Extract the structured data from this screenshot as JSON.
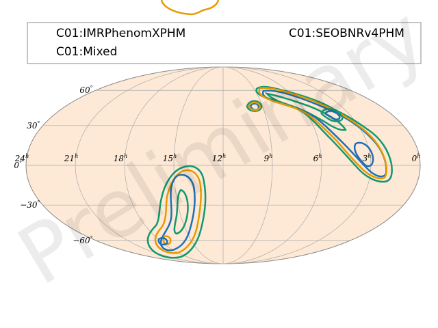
{
  "legend": {
    "items": [
      {
        "label": "C01:IMRPhenomXPHM",
        "color": "#1f6fb4"
      },
      {
        "label": "C01:SEOBNRv4PHM",
        "color": "#e69a00"
      },
      {
        "label": "C01:Mixed",
        "color": "#11996e"
      }
    ]
  },
  "watermark": "Preliminary",
  "chart_data": {
    "type": "skymap",
    "projection": "mollweide",
    "background_color": "#fde9d6",
    "grid": true,
    "ra_ticks": [
      {
        "base": "0",
        "sup": "h"
      },
      {
        "base": "3",
        "sup": "h"
      },
      {
        "base": "6",
        "sup": "h"
      },
      {
        "base": "9",
        "sup": "h"
      },
      {
        "base": "12",
        "sup": "h"
      },
      {
        "base": "15",
        "sup": "h"
      },
      {
        "base": "18",
        "sup": "h"
      },
      {
        "base": "21",
        "sup": "h"
      },
      {
        "base": "24",
        "sup": "h"
      }
    ],
    "dec_ticks": [
      {
        "base": "60",
        "sup": "°"
      },
      {
        "base": "30",
        "sup": "°"
      },
      {
        "base": "0",
        "sup": "°"
      },
      {
        "base": "−30",
        "sup": "°"
      },
      {
        "base": "−60",
        "sup": "°"
      }
    ],
    "series": [
      {
        "name": "C01:IMRPhenomXPHM",
        "color": "#1f6fb4"
      },
      {
        "name": "C01:SEOBNRv4PHM",
        "color": "#e69a00"
      },
      {
        "name": "C01:Mixed",
        "color": "#11996e"
      }
    ]
  }
}
